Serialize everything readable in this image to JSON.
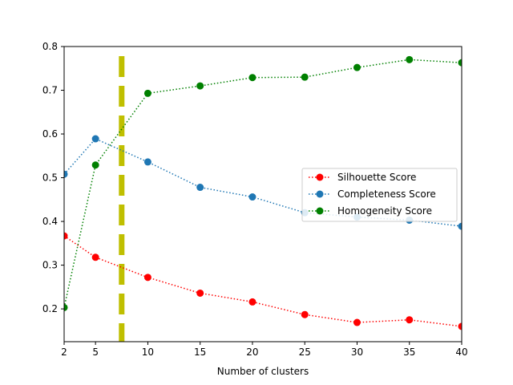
{
  "chart_data": {
    "type": "line",
    "xlabel": "Number of clusters",
    "ylabel": "",
    "title": "",
    "x": [
      2,
      5,
      10,
      15,
      20,
      25,
      30,
      35,
      40
    ],
    "xticks": [
      2,
      5,
      10,
      15,
      20,
      25,
      30,
      35,
      40
    ],
    "xlim": [
      2,
      40
    ],
    "ylim": [
      0.125,
      0.8
    ],
    "yticks": [
      0.2,
      0.3,
      0.4,
      0.5,
      0.6,
      0.7,
      0.8
    ],
    "ytick_labels": [
      "0.2",
      "0.3",
      "0.4",
      "0.5",
      "0.6",
      "0.7",
      "0.8"
    ],
    "grid": false,
    "legend_position": "center-right",
    "series": [
      {
        "name": "Silhouette Score",
        "color": "#ff0000",
        "line_style": "dotted",
        "marker": "circle",
        "values": [
          0.367,
          0.318,
          0.272,
          0.236,
          0.216,
          0.187,
          0.169,
          0.175,
          0.16
        ]
      },
      {
        "name": "Completeness Score",
        "color": "#1f77b4",
        "line_style": "dotted",
        "marker": "circle",
        "values": [
          0.508,
          0.589,
          0.536,
          0.478,
          0.456,
          0.42,
          0.41,
          0.403,
          0.389
        ]
      },
      {
        "name": "Homogeneity Score",
        "color": "#008000",
        "line_style": "dotted",
        "marker": "circle",
        "values": [
          0.203,
          0.529,
          0.693,
          0.71,
          0.729,
          0.73,
          0.752,
          0.77,
          0.763
        ]
      }
    ],
    "vertical_line": {
      "x": 7.5,
      "color": "#bfbf00",
      "line_style": "dashed"
    }
  }
}
